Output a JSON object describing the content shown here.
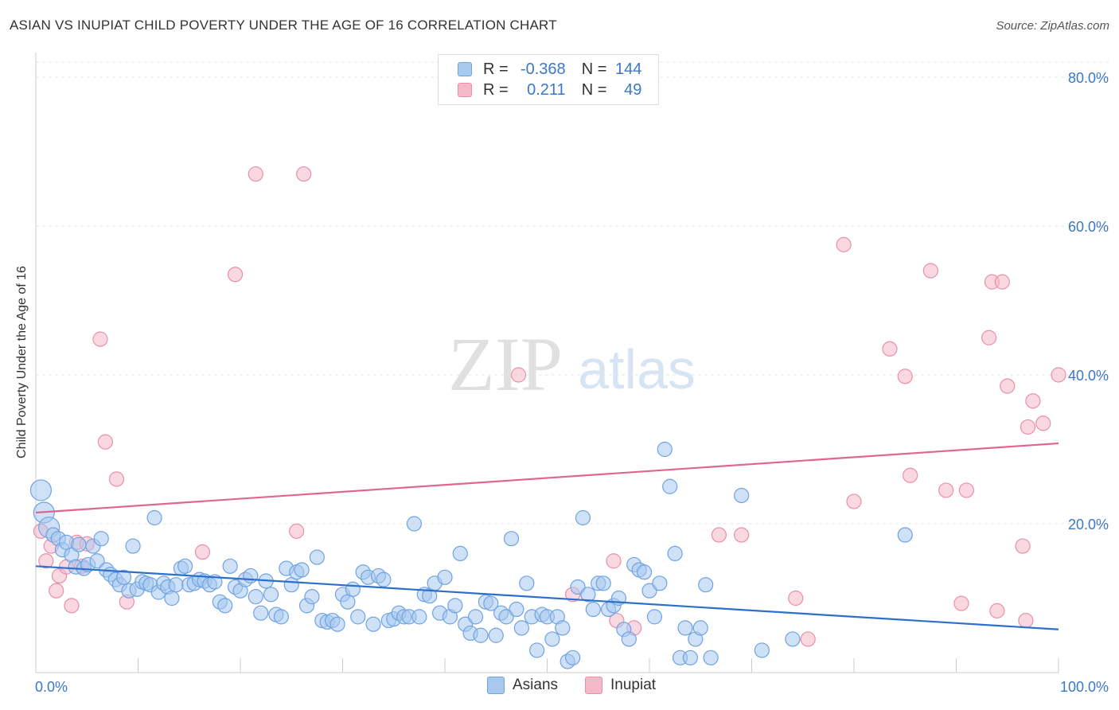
{
  "title": "ASIAN VS INUPIAT CHILD POVERTY UNDER THE AGE OF 16 CORRELATION CHART",
  "source": "Source: ZipAtlas.com",
  "watermark": {
    "zip": "ZIP",
    "atlas": "atlas"
  },
  "legend_stats": [
    {
      "r_label": "R =",
      "r_value": "-0.368",
      "n_label": "N =",
      "n_value": "144",
      "color": "#a8c8f0"
    },
    {
      "r_label": "R =",
      "r_value": "0.211",
      "n_label": "N =",
      "n_value": "49",
      "color": "#f5b8c8"
    }
  ],
  "chart_data": {
    "type": "scatter",
    "title": "ASIAN VS INUPIAT CHILD POVERTY UNDER THE AGE OF 16 CORRELATION CHART",
    "ylabel": "Child Poverty Under the Age of 16",
    "xlabel": "",
    "xlim": [
      0,
      100
    ],
    "ylim": [
      0,
      80
    ],
    "x_tick_labels": [
      "0.0%",
      "100.0%"
    ],
    "y_tick_labels": [
      "20.0%",
      "40.0%",
      "60.0%",
      "80.0%"
    ],
    "y_ticks": [
      20,
      40,
      60,
      80
    ],
    "grid": true,
    "legend_position": "bottom-center",
    "series": [
      {
        "name": "Asians",
        "color": "#6fa3e0",
        "fill": "#a8c8f0",
        "trend": {
          "x": [
            0,
            100
          ],
          "y": [
            14.3,
            5.8
          ],
          "color": "#2f6fcc"
        },
        "points": [
          [
            0.5,
            24.5
          ],
          [
            0.8,
            21.5
          ],
          [
            1.3,
            19.5
          ],
          [
            1.7,
            18.5
          ],
          [
            2.2,
            18.0
          ],
          [
            2.6,
            16.5
          ],
          [
            3.0,
            17.5
          ],
          [
            3.5,
            15.8
          ],
          [
            3.9,
            14.2
          ],
          [
            4.2,
            17.2
          ],
          [
            4.7,
            14.0
          ],
          [
            5.1,
            14.5
          ],
          [
            5.6,
            17.0
          ],
          [
            6.0,
            15.0
          ],
          [
            6.4,
            18.0
          ],
          [
            6.9,
            13.8
          ],
          [
            7.3,
            13.2
          ],
          [
            7.8,
            12.5
          ],
          [
            8.2,
            11.8
          ],
          [
            8.6,
            12.8
          ],
          [
            9.1,
            11.0
          ],
          [
            9.5,
            17.0
          ],
          [
            9.9,
            11.2
          ],
          [
            10.4,
            12.2
          ],
          [
            10.8,
            12.0
          ],
          [
            11.2,
            11.8
          ],
          [
            11.6,
            20.8
          ],
          [
            12.0,
            10.8
          ],
          [
            12.5,
            12.0
          ],
          [
            12.9,
            11.5
          ],
          [
            13.3,
            10.0
          ],
          [
            13.7,
            11.8
          ],
          [
            14.2,
            14.0
          ],
          [
            14.6,
            14.3
          ],
          [
            15.0,
            11.8
          ],
          [
            15.5,
            12.0
          ],
          [
            16.0,
            12.5
          ],
          [
            16.5,
            12.3
          ],
          [
            17.0,
            11.8
          ],
          [
            17.5,
            12.2
          ],
          [
            18.0,
            9.5
          ],
          [
            18.5,
            9.0
          ],
          [
            19.0,
            14.3
          ],
          [
            19.5,
            11.5
          ],
          [
            20.0,
            11.0
          ],
          [
            20.5,
            12.5
          ],
          [
            21.0,
            13.0
          ],
          [
            21.5,
            10.2
          ],
          [
            22.0,
            8.0
          ],
          [
            22.5,
            12.3
          ],
          [
            23.0,
            10.5
          ],
          [
            23.5,
            7.8
          ],
          [
            24.0,
            7.5
          ],
          [
            24.5,
            14.0
          ],
          [
            25.0,
            11.8
          ],
          [
            25.5,
            13.5
          ],
          [
            26.0,
            13.8
          ],
          [
            26.5,
            9.0
          ],
          [
            27.0,
            10.2
          ],
          [
            27.5,
            15.5
          ],
          [
            28.0,
            7.0
          ],
          [
            28.5,
            6.8
          ],
          [
            29.0,
            7.0
          ],
          [
            29.5,
            6.5
          ],
          [
            30.0,
            10.5
          ],
          [
            30.5,
            9.5
          ],
          [
            31.0,
            11.2
          ],
          [
            31.5,
            7.5
          ],
          [
            32.0,
            13.5
          ],
          [
            32.5,
            12.8
          ],
          [
            33.0,
            6.5
          ],
          [
            33.5,
            13.0
          ],
          [
            34.0,
            12.5
          ],
          [
            34.5,
            7.0
          ],
          [
            35.0,
            7.2
          ],
          [
            35.5,
            8.0
          ],
          [
            36.0,
            7.5
          ],
          [
            36.5,
            7.5
          ],
          [
            37.0,
            20.0
          ],
          [
            37.5,
            7.5
          ],
          [
            38.0,
            10.5
          ],
          [
            38.5,
            10.3
          ],
          [
            39.0,
            12.0
          ],
          [
            39.5,
            8.0
          ],
          [
            40.0,
            12.8
          ],
          [
            40.5,
            7.5
          ],
          [
            41.0,
            9.0
          ],
          [
            41.5,
            16.0
          ],
          [
            42.0,
            6.5
          ],
          [
            42.5,
            5.3
          ],
          [
            43.0,
            7.5
          ],
          [
            43.5,
            5.0
          ],
          [
            44.0,
            9.5
          ],
          [
            44.5,
            9.3
          ],
          [
            45.0,
            5.0
          ],
          [
            45.5,
            8.0
          ],
          [
            46.0,
            7.5
          ],
          [
            46.5,
            18.0
          ],
          [
            47.0,
            8.5
          ],
          [
            47.5,
            6.0
          ],
          [
            48.0,
            12.0
          ],
          [
            48.5,
            7.5
          ],
          [
            49.0,
            3.0
          ],
          [
            49.5,
            7.8
          ],
          [
            50.0,
            7.5
          ],
          [
            50.5,
            4.5
          ],
          [
            51.0,
            7.5
          ],
          [
            51.5,
            6.0
          ],
          [
            52.0,
            1.5
          ],
          [
            52.5,
            2.0
          ],
          [
            53.0,
            11.5
          ],
          [
            53.5,
            20.8
          ],
          [
            54.0,
            10.5
          ],
          [
            54.5,
            8.5
          ],
          [
            55.0,
            12.0
          ],
          [
            55.5,
            12.0
          ],
          [
            56.0,
            8.5
          ],
          [
            56.5,
            9.0
          ],
          [
            57.0,
            10.0
          ],
          [
            57.5,
            5.8
          ],
          [
            58.0,
            4.5
          ],
          [
            58.5,
            14.5
          ],
          [
            59.0,
            13.8
          ],
          [
            59.5,
            13.5
          ],
          [
            60.0,
            11.0
          ],
          [
            60.5,
            7.5
          ],
          [
            61.0,
            12.0
          ],
          [
            61.5,
            30.0
          ],
          [
            62.0,
            25.0
          ],
          [
            62.5,
            16.0
          ],
          [
            63.0,
            2.0
          ],
          [
            63.5,
            6.0
          ],
          [
            64.0,
            2.0
          ],
          [
            64.5,
            4.5
          ],
          [
            65.0,
            6.0
          ],
          [
            65.5,
            11.8
          ],
          [
            66.0,
            2.0
          ],
          [
            69.0,
            23.8
          ],
          [
            71.0,
            3.0
          ],
          [
            74.0,
            4.5
          ],
          [
            85.0,
            18.5
          ]
        ]
      },
      {
        "name": "Inupiat",
        "color": "#e890a8",
        "fill": "#f5b8c8",
        "trend": {
          "x": [
            0,
            100
          ],
          "y": [
            21.5,
            30.8
          ],
          "color": "#e0668f"
        },
        "points": [
          [
            0.5,
            19.0
          ],
          [
            1.0,
            15.0
          ],
          [
            1.5,
            17.0
          ],
          [
            2.0,
            11.0
          ],
          [
            2.3,
            13.0
          ],
          [
            3.0,
            14.2
          ],
          [
            3.5,
            9.0
          ],
          [
            4.0,
            17.5
          ],
          [
            4.5,
            14.3
          ],
          [
            5.0,
            17.3
          ],
          [
            6.3,
            44.8
          ],
          [
            6.8,
            31.0
          ],
          [
            7.9,
            26.0
          ],
          [
            8.9,
            9.5
          ],
          [
            16.3,
            16.2
          ],
          [
            19.5,
            53.5
          ],
          [
            21.5,
            67.0
          ],
          [
            25.5,
            19.0
          ],
          [
            26.2,
            67.0
          ],
          [
            47.2,
            40.0
          ],
          [
            52.5,
            10.5
          ],
          [
            56.5,
            15.0
          ],
          [
            56.8,
            7.0
          ],
          [
            58.5,
            6.0
          ],
          [
            66.8,
            18.5
          ],
          [
            69.0,
            18.5
          ],
          [
            74.3,
            10.0
          ],
          [
            75.5,
            4.5
          ],
          [
            79.0,
            57.5
          ],
          [
            80.0,
            23.0
          ],
          [
            83.5,
            43.5
          ],
          [
            85.0,
            39.8
          ],
          [
            85.5,
            26.5
          ],
          [
            87.5,
            54.0
          ],
          [
            89.0,
            24.5
          ],
          [
            90.5,
            9.3
          ],
          [
            91.0,
            24.5
          ],
          [
            93.2,
            45.0
          ],
          [
            93.5,
            52.5
          ],
          [
            94.0,
            8.3
          ],
          [
            94.5,
            52.5
          ],
          [
            95.0,
            38.5
          ],
          [
            96.5,
            17.0
          ],
          [
            96.8,
            7.0
          ],
          [
            97.0,
            33.0
          ],
          [
            97.5,
            36.5
          ],
          [
            98.5,
            33.5
          ],
          [
            100.0,
            40.0
          ]
        ]
      }
    ]
  },
  "bottom_legend": [
    {
      "label": "Asians",
      "color": "#a8c8f0"
    },
    {
      "label": "Inupiat",
      "color": "#f5b8c8"
    }
  ]
}
